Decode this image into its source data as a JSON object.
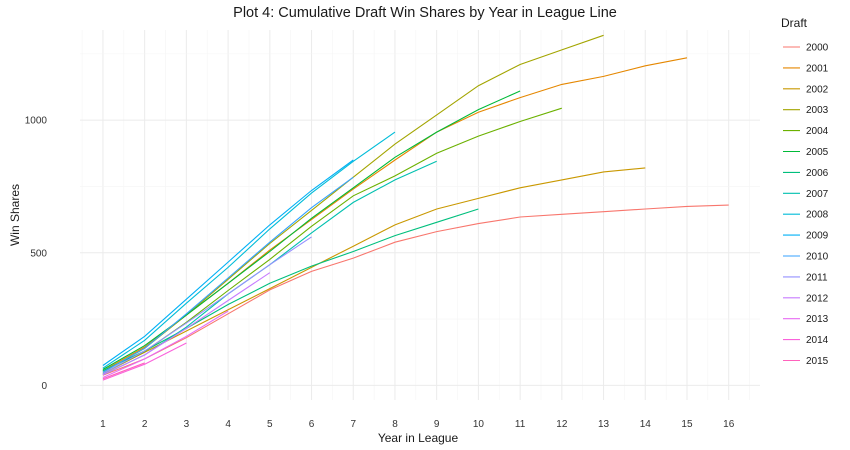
{
  "chart_data": {
    "type": "line",
    "title": "Plot 4: Cumulative Draft Win Shares by Year in League Line",
    "xlabel": "Year in League",
    "ylabel": "Win Shares",
    "x_ticks": [
      1,
      2,
      3,
      4,
      5,
      6,
      7,
      8,
      9,
      10,
      11,
      12,
      13,
      14,
      15,
      16
    ],
    "y_ticks": [
      0,
      500,
      1000
    ],
    "xlim": [
      0.45,
      16.75
    ],
    "ylim": [
      -55,
      1340
    ],
    "grid": true,
    "legend": {
      "title": "Draft",
      "placement": "right"
    },
    "series": [
      {
        "name": "2000",
        "color": "#F8766D",
        "x": [
          1,
          2,
          3,
          4,
          5,
          6,
          7,
          8,
          9,
          10,
          11,
          12,
          13,
          14,
          15,
          16
        ],
        "y": [
          38,
          100,
          180,
          270,
          360,
          430,
          480,
          540,
          580,
          610,
          635,
          645,
          655,
          665,
          675,
          680
        ]
      },
      {
        "name": "2001",
        "color": "#E58700",
        "x": [
          1,
          2,
          3,
          4,
          5,
          6,
          7,
          8,
          9,
          10,
          11,
          12,
          13,
          14,
          15
        ],
        "y": [
          55,
          145,
          265,
          385,
          510,
          625,
          740,
          850,
          955,
          1030,
          1085,
          1135,
          1165,
          1205,
          1235
        ]
      },
      {
        "name": "2002",
        "color": "#C99800",
        "x": [
          1,
          2,
          3,
          4,
          5,
          6,
          7,
          8,
          9,
          10,
          11,
          12,
          13,
          14
        ],
        "y": [
          45,
          125,
          205,
          285,
          365,
          445,
          525,
          605,
          665,
          705,
          745,
          775,
          805,
          820
        ]
      },
      {
        "name": "2003",
        "color": "#A3A500",
        "x": [
          1,
          2,
          3,
          4,
          5,
          6,
          7,
          8,
          9,
          10,
          11,
          12,
          13
        ],
        "y": [
          50,
          140,
          265,
          400,
          535,
          660,
          785,
          910,
          1020,
          1130,
          1210,
          1265,
          1320
        ]
      },
      {
        "name": "2004",
        "color": "#6BB100",
        "x": [
          1,
          2,
          3,
          4,
          5,
          6,
          7,
          8,
          9,
          10,
          11,
          12
        ],
        "y": [
          45,
          128,
          238,
          358,
          475,
          600,
          715,
          790,
          875,
          940,
          995,
          1045
        ]
      },
      {
        "name": "2005",
        "color": "#00BA38",
        "x": [
          1,
          2,
          3,
          4,
          5,
          6,
          7,
          8,
          9,
          10,
          11
        ],
        "y": [
          60,
          150,
          265,
          385,
          505,
          630,
          745,
          860,
          955,
          1040,
          1110
        ]
      },
      {
        "name": "2006",
        "color": "#00BF7D",
        "x": [
          1,
          2,
          3,
          4,
          5,
          6,
          7,
          8,
          9,
          10
        ],
        "y": [
          55,
          130,
          215,
          305,
          385,
          450,
          505,
          565,
          615,
          665
        ]
      },
      {
        "name": "2007",
        "color": "#00C0AF",
        "x": [
          1,
          2,
          3,
          4,
          5,
          6,
          7,
          8,
          9
        ],
        "y": [
          40,
          115,
          220,
          345,
          455,
          575,
          690,
          775,
          845
        ]
      },
      {
        "name": "2008",
        "color": "#00BCD8",
        "x": [
          1,
          2,
          3,
          4,
          5,
          6,
          7,
          8
        ],
        "y": [
          65,
          170,
          310,
          445,
          590,
          725,
          845,
          955
        ]
      },
      {
        "name": "2009",
        "color": "#00B0F6",
        "x": [
          1,
          2,
          3,
          4,
          5,
          6,
          7
        ],
        "y": [
          75,
          185,
          325,
          465,
          605,
          735,
          850
        ]
      },
      {
        "name": "2010",
        "color": "#35A2FF",
        "x": [
          1,
          2,
          3,
          4,
          5,
          6,
          7
        ],
        "y": [
          50,
          140,
          270,
          405,
          540,
          670,
          785
        ]
      },
      {
        "name": "2011",
        "color": "#9590FF",
        "x": [
          1,
          2,
          3,
          4,
          5,
          6
        ],
        "y": [
          45,
          130,
          235,
          345,
          455,
          560
        ]
      },
      {
        "name": "2012",
        "color": "#C77CFF",
        "x": [
          1,
          2,
          3,
          4,
          5
        ],
        "y": [
          40,
          115,
          215,
          320,
          425
        ]
      },
      {
        "name": "2013",
        "color": "#E76BF3",
        "x": [
          1,
          2,
          3,
          4
        ],
        "y": [
          30,
          100,
          185,
          280
        ]
      },
      {
        "name": "2014",
        "color": "#FA62DB",
        "x": [
          1,
          2,
          3
        ],
        "y": [
          20,
          80,
          160
        ]
      },
      {
        "name": "2015",
        "color": "#FF62BC",
        "x": [
          1,
          2
        ],
        "y": [
          25,
          85
        ]
      }
    ]
  }
}
